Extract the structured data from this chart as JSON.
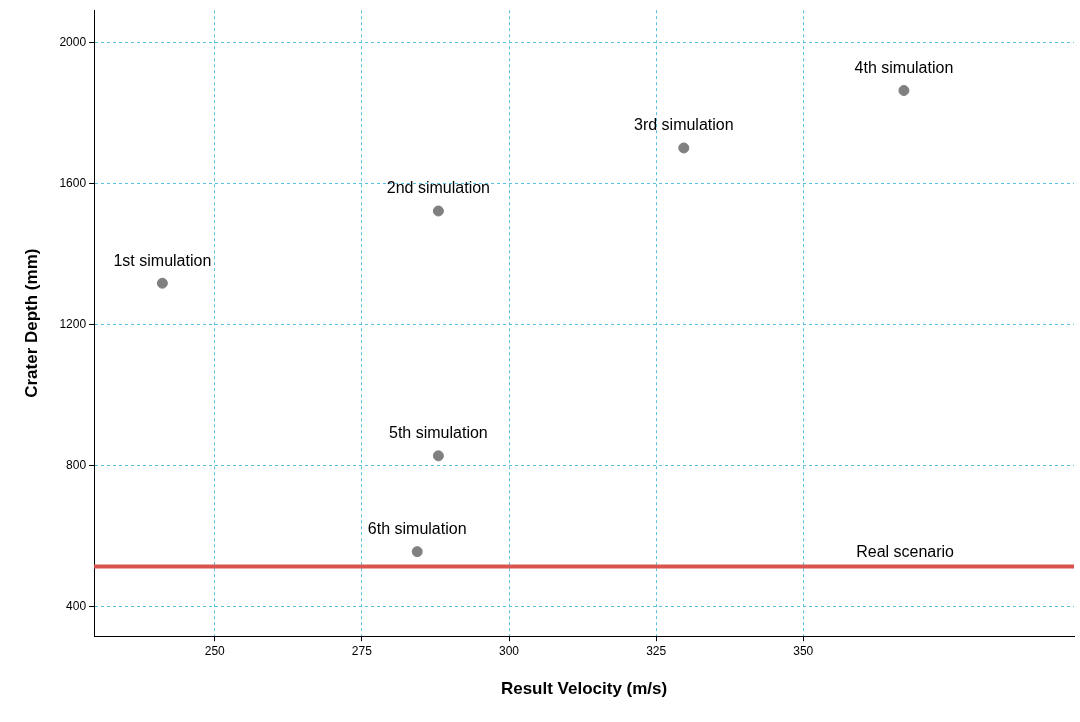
{
  "chart_data": {
    "type": "scatter",
    "xlabel": "Result Velocity (m/s)",
    "ylabel": "Crater Depth (mm)",
    "x": [
      241.1,
      288,
      329.7,
      367.1,
      288,
      284.4
    ],
    "values": [
      1318,
      1523,
      1702,
      1865,
      828,
      556
    ],
    "color": "#808080",
    "marker": "circle",
    "xlim": [
      229.5,
      396
    ],
    "xticks": [
      250,
      275,
      300,
      325,
      350
    ],
    "ylim": [
      316,
      2093
    ],
    "yticks": [
      400,
      800,
      1200,
      1600,
      2000
    ],
    "grid": true,
    "ref_lines": [
      {
        "axis": "y",
        "value": 514,
        "label": "Real scenario",
        "color": "#d9534f"
      }
    ],
    "annotations": [
      {
        "text": "1st simulation",
        "x": 241.1,
        "y": 1318
      },
      {
        "text": "2nd simulation",
        "x": 288,
        "y": 1523
      },
      {
        "text": "3rd simulation",
        "x": 329.7,
        "y": 1702
      },
      {
        "text": "4th simulation",
        "x": 367.1,
        "y": 1865
      },
      {
        "text": "5th simulation",
        "x": 288,
        "y": 828
      },
      {
        "text": "6th simulation",
        "x": 284.4,
        "y": 556
      }
    ]
  }
}
